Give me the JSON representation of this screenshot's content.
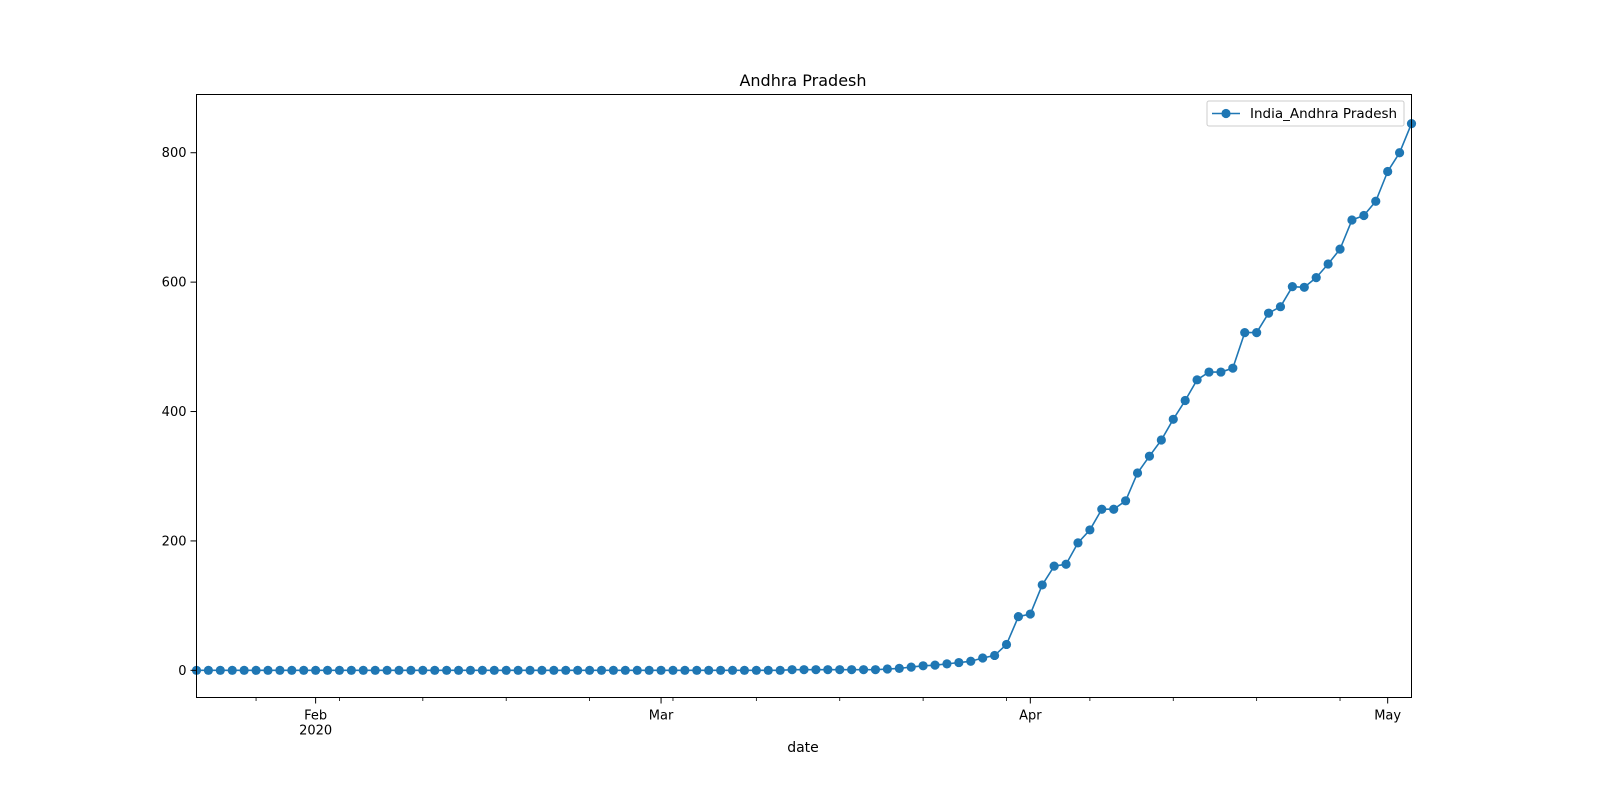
{
  "chart_data": {
    "type": "line",
    "title": "Andhra Pradesh",
    "xlabel": "date",
    "ylabel": "",
    "xlim": [
      "2020-01-22",
      "2020-05-03"
    ],
    "ylim": [
      -42,
      890
    ],
    "grid": false,
    "legend_position": "top-right",
    "x_ticks": [
      {
        "date": "2020-02-01",
        "label": "Feb",
        "sublabel": "2020"
      },
      {
        "date": "2020-03-01",
        "label": "Mar",
        "sublabel": ""
      },
      {
        "date": "2020-04-01",
        "label": "Apr",
        "sublabel": ""
      },
      {
        "date": "2020-05-01",
        "label": "May",
        "sublabel": ""
      }
    ],
    "y_ticks": [
      0,
      200,
      400,
      600,
      800
    ],
    "series": [
      {
        "name": "India_Andhra Pradesh",
        "color": "#1f77b4",
        "marker": "circle",
        "x": [
          "2020-01-22",
          "2020-01-23",
          "2020-01-24",
          "2020-01-25",
          "2020-01-26",
          "2020-01-27",
          "2020-01-28",
          "2020-01-29",
          "2020-01-30",
          "2020-01-31",
          "2020-02-01",
          "2020-02-02",
          "2020-02-03",
          "2020-02-04",
          "2020-02-05",
          "2020-02-06",
          "2020-02-07",
          "2020-02-08",
          "2020-02-09",
          "2020-02-10",
          "2020-02-11",
          "2020-02-12",
          "2020-02-13",
          "2020-02-14",
          "2020-02-15",
          "2020-02-16",
          "2020-02-17",
          "2020-02-18",
          "2020-02-19",
          "2020-02-20",
          "2020-02-21",
          "2020-02-22",
          "2020-02-23",
          "2020-02-24",
          "2020-02-25",
          "2020-02-26",
          "2020-02-27",
          "2020-02-28",
          "2020-02-29",
          "2020-03-01",
          "2020-03-02",
          "2020-03-03",
          "2020-03-04",
          "2020-03-05",
          "2020-03-06",
          "2020-03-07",
          "2020-03-08",
          "2020-03-09",
          "2020-03-10",
          "2020-03-11",
          "2020-03-12",
          "2020-03-13",
          "2020-03-14",
          "2020-03-15",
          "2020-03-16",
          "2020-03-17",
          "2020-03-18",
          "2020-03-19",
          "2020-03-20",
          "2020-03-21",
          "2020-03-22",
          "2020-03-23",
          "2020-03-24",
          "2020-03-25",
          "2020-03-26",
          "2020-03-27",
          "2020-03-28",
          "2020-03-29",
          "2020-03-30",
          "2020-03-31",
          "2020-04-01",
          "2020-04-02",
          "2020-04-03",
          "2020-04-04",
          "2020-04-05",
          "2020-04-06",
          "2020-04-07",
          "2020-04-08",
          "2020-04-09",
          "2020-04-10",
          "2020-04-11",
          "2020-04-12",
          "2020-04-13",
          "2020-04-14",
          "2020-04-15",
          "2020-04-16",
          "2020-04-17",
          "2020-04-18",
          "2020-04-19",
          "2020-04-20",
          "2020-04-21",
          "2020-04-22",
          "2020-04-23",
          "2020-04-24",
          "2020-04-25",
          "2020-04-26",
          "2020-04-27",
          "2020-04-28",
          "2020-04-29",
          "2020-04-30",
          "2020-05-01",
          "2020-05-02",
          "2020-05-03"
        ],
        "y": [
          0,
          0,
          0,
          0,
          0,
          0,
          0,
          0,
          0,
          0,
          0,
          0,
          0,
          0,
          0,
          0,
          0,
          0,
          0,
          0,
          0,
          0,
          0,
          0,
          0,
          0,
          0,
          0,
          0,
          0,
          0,
          0,
          0,
          0,
          0,
          0,
          0,
          0,
          0,
          0,
          0,
          0,
          0,
          0,
          0,
          0,
          0,
          0,
          0,
          0,
          1,
          1,
          1,
          1,
          1,
          1,
          1,
          1,
          2,
          3,
          5,
          7,
          8,
          10,
          12,
          14,
          19,
          23,
          40,
          83,
          87,
          132,
          161,
          164,
          197,
          217,
          249,
          249,
          262,
          305,
          331,
          356,
          388,
          417,
          449,
          461,
          461,
          467,
          522,
          522,
          552,
          562,
          593,
          592,
          607,
          628,
          651,
          696,
          703,
          725,
          771,
          800,
          845
        ]
      }
    ]
  }
}
